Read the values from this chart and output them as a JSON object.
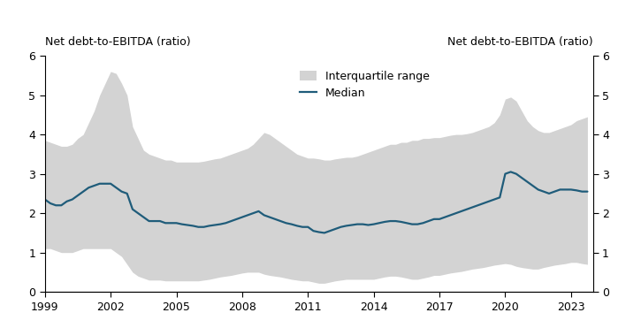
{
  "ylabel_left": "Net debt-to-EBITDA (ratio)",
  "ylabel_right": "Net debt-to-EBITDA (ratio)",
  "ylim": [
    0,
    6
  ],
  "yticks": [
    0,
    1,
    2,
    3,
    4,
    5,
    6
  ],
  "xticks": [
    1999,
    2002,
    2005,
    2008,
    2011,
    2014,
    2017,
    2020,
    2023
  ],
  "fill_color": "#d3d3d3",
  "line_color": "#1f5c7a",
  "legend_fill_label": "Interquartile range",
  "legend_line_label": "Median",
  "years": [
    1999.0,
    1999.25,
    1999.5,
    1999.75,
    2000.0,
    2000.25,
    2000.5,
    2000.75,
    2001.0,
    2001.25,
    2001.5,
    2001.75,
    2002.0,
    2002.25,
    2002.5,
    2002.75,
    2003.0,
    2003.25,
    2003.5,
    2003.75,
    2004.0,
    2004.25,
    2004.5,
    2004.75,
    2005.0,
    2005.25,
    2005.5,
    2005.75,
    2006.0,
    2006.25,
    2006.5,
    2006.75,
    2007.0,
    2007.25,
    2007.5,
    2007.75,
    2008.0,
    2008.25,
    2008.5,
    2008.75,
    2009.0,
    2009.25,
    2009.5,
    2009.75,
    2010.0,
    2010.25,
    2010.5,
    2010.75,
    2011.0,
    2011.25,
    2011.5,
    2011.75,
    2012.0,
    2012.25,
    2012.5,
    2012.75,
    2013.0,
    2013.25,
    2013.5,
    2013.75,
    2014.0,
    2014.25,
    2014.5,
    2014.75,
    2015.0,
    2015.25,
    2015.5,
    2015.75,
    2016.0,
    2016.25,
    2016.5,
    2016.75,
    2017.0,
    2017.25,
    2017.5,
    2017.75,
    2018.0,
    2018.25,
    2018.5,
    2018.75,
    2019.0,
    2019.25,
    2019.5,
    2019.75,
    2020.0,
    2020.25,
    2020.5,
    2020.75,
    2021.0,
    2021.25,
    2021.5,
    2021.75,
    2022.0,
    2022.25,
    2022.5,
    2022.75,
    2023.0,
    2023.25,
    2023.5,
    2023.75
  ],
  "median": [
    2.35,
    2.25,
    2.2,
    2.2,
    2.3,
    2.35,
    2.45,
    2.55,
    2.65,
    2.7,
    2.75,
    2.75,
    2.75,
    2.65,
    2.55,
    2.5,
    2.1,
    2.0,
    1.9,
    1.8,
    1.8,
    1.8,
    1.75,
    1.75,
    1.75,
    1.72,
    1.7,
    1.68,
    1.65,
    1.65,
    1.68,
    1.7,
    1.72,
    1.75,
    1.8,
    1.85,
    1.9,
    1.95,
    2.0,
    2.05,
    1.95,
    1.9,
    1.85,
    1.8,
    1.75,
    1.72,
    1.68,
    1.65,
    1.65,
    1.55,
    1.52,
    1.5,
    1.55,
    1.6,
    1.65,
    1.68,
    1.7,
    1.72,
    1.72,
    1.7,
    1.72,
    1.75,
    1.78,
    1.8,
    1.8,
    1.78,
    1.75,
    1.72,
    1.72,
    1.75,
    1.8,
    1.85,
    1.85,
    1.9,
    1.95,
    2.0,
    2.05,
    2.1,
    2.15,
    2.2,
    2.25,
    2.3,
    2.35,
    2.4,
    3.0,
    3.05,
    3.0,
    2.9,
    2.8,
    2.7,
    2.6,
    2.55,
    2.5,
    2.55,
    2.6,
    2.6,
    2.6,
    2.58,
    2.55,
    2.55
  ],
  "iqr_lower": [
    1.1,
    1.1,
    1.05,
    1.0,
    1.0,
    1.0,
    1.05,
    1.1,
    1.1,
    1.1,
    1.1,
    1.1,
    1.1,
    1.0,
    0.9,
    0.7,
    0.5,
    0.4,
    0.35,
    0.3,
    0.3,
    0.3,
    0.28,
    0.28,
    0.28,
    0.28,
    0.28,
    0.28,
    0.28,
    0.3,
    0.32,
    0.35,
    0.38,
    0.4,
    0.42,
    0.45,
    0.48,
    0.5,
    0.5,
    0.5,
    0.45,
    0.42,
    0.4,
    0.38,
    0.35,
    0.32,
    0.3,
    0.28,
    0.28,
    0.25,
    0.22,
    0.22,
    0.25,
    0.28,
    0.3,
    0.32,
    0.32,
    0.32,
    0.32,
    0.32,
    0.32,
    0.35,
    0.38,
    0.4,
    0.4,
    0.38,
    0.35,
    0.32,
    0.32,
    0.35,
    0.38,
    0.42,
    0.42,
    0.45,
    0.48,
    0.5,
    0.52,
    0.55,
    0.58,
    0.6,
    0.62,
    0.65,
    0.68,
    0.7,
    0.72,
    0.7,
    0.65,
    0.62,
    0.6,
    0.58,
    0.58,
    0.62,
    0.65,
    0.68,
    0.7,
    0.72,
    0.75,
    0.75,
    0.72,
    0.7
  ],
  "iqr_upper": [
    3.85,
    3.8,
    3.75,
    3.7,
    3.7,
    3.75,
    3.9,
    4.0,
    4.3,
    4.6,
    5.0,
    5.3,
    5.6,
    5.55,
    5.3,
    5.0,
    4.2,
    3.9,
    3.6,
    3.5,
    3.45,
    3.4,
    3.35,
    3.35,
    3.3,
    3.3,
    3.3,
    3.3,
    3.3,
    3.32,
    3.35,
    3.38,
    3.4,
    3.45,
    3.5,
    3.55,
    3.6,
    3.65,
    3.75,
    3.9,
    4.05,
    4.0,
    3.9,
    3.8,
    3.7,
    3.6,
    3.5,
    3.45,
    3.4,
    3.4,
    3.38,
    3.35,
    3.35,
    3.38,
    3.4,
    3.42,
    3.42,
    3.45,
    3.5,
    3.55,
    3.6,
    3.65,
    3.7,
    3.75,
    3.75,
    3.8,
    3.8,
    3.85,
    3.85,
    3.9,
    3.9,
    3.92,
    3.92,
    3.95,
    3.98,
    4.0,
    4.0,
    4.02,
    4.05,
    4.1,
    4.15,
    4.2,
    4.3,
    4.5,
    4.9,
    4.95,
    4.85,
    4.6,
    4.35,
    4.2,
    4.1,
    4.05,
    4.05,
    4.1,
    4.15,
    4.2,
    4.25,
    4.35,
    4.4,
    4.45
  ]
}
